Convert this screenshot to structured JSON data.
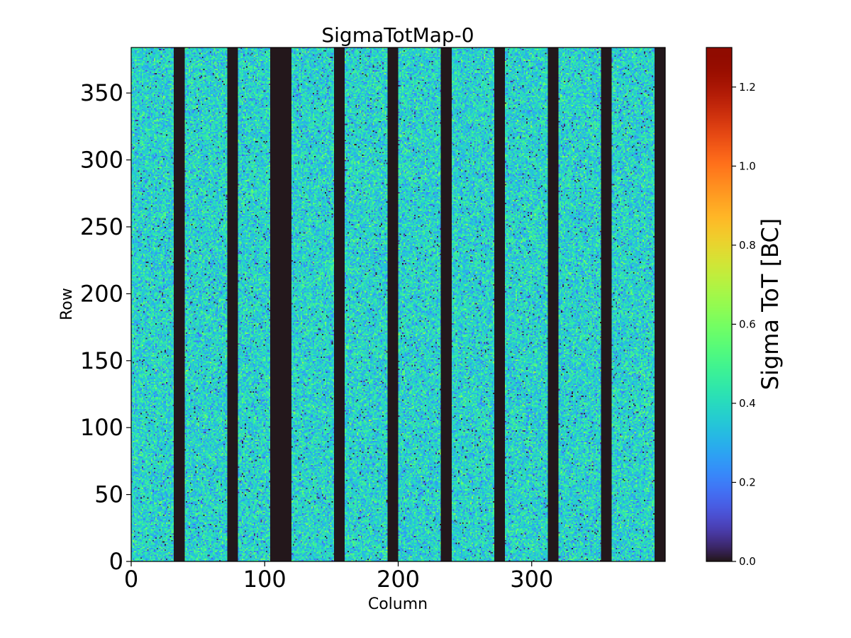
{
  "chart_data": {
    "type": "heatmap",
    "title": "SigmaTotMap-0",
    "xlabel": "Column",
    "ylabel": "Row",
    "xlim": [
      0,
      400
    ],
    "ylim": [
      0,
      384
    ],
    "xticks": [
      0,
      100,
      200,
      300
    ],
    "yticks": [
      0,
      50,
      100,
      150,
      200,
      250,
      300,
      350
    ],
    "grid": false,
    "value_distribution": {
      "typical_mean": 0.38,
      "typical_spread": 0.09,
      "min": 0.0,
      "max": 1.3
    },
    "dead_column_ranges": [
      [
        32,
        40
      ],
      [
        72,
        80
      ],
      [
        104,
        120
      ],
      [
        152,
        160
      ],
      [
        192,
        200
      ],
      [
        232,
        240
      ],
      [
        272,
        280
      ],
      [
        312,
        320
      ],
      [
        352,
        360
      ],
      [
        392,
        400
      ]
    ],
    "dead_value": 0.0,
    "colorbar": {
      "label": "Sigma ToT [BC]",
      "colormap": "turbo",
      "range": [
        0.0,
        1.3
      ],
      "ticks": [
        0.0,
        0.2,
        0.4,
        0.6,
        0.8,
        1.0,
        1.2
      ],
      "tick_labels": [
        "0.0",
        "0.2",
        "0.4",
        "0.6",
        "0.8",
        "1.0",
        "1.2"
      ]
    }
  }
}
